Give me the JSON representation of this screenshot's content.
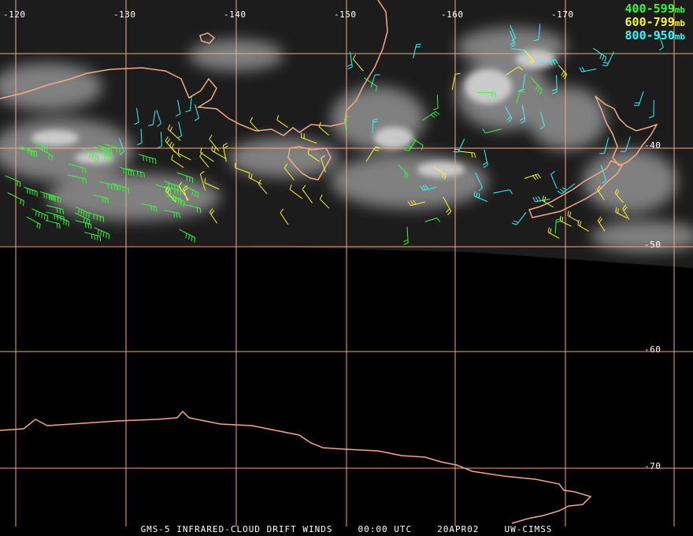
{
  "map": {
    "longitude_labels": [
      "-120",
      "-130",
      "-140",
      "-150",
      "-160",
      "-170"
    ],
    "latitude_labels": [
      "-40",
      "-50",
      "-60",
      "-70"
    ],
    "grid_color": "#f4a886",
    "coast_color": "#f4a886"
  },
  "legend": [
    {
      "range": "400-599",
      "unit": "mb",
      "color": "#3cf53c"
    },
    {
      "range": "600-799",
      "unit": "mb",
      "color": "#f5f53c"
    },
    {
      "range": "800-950",
      "unit": "mb",
      "color": "#3cf5f5"
    }
  ],
  "caption": {
    "product": "GMS-5 INFRARED-CLOUD DRIFT WINDS",
    "time": "00:00 UTC",
    "date": "20APR02",
    "source": "UW-CIMSS"
  }
}
